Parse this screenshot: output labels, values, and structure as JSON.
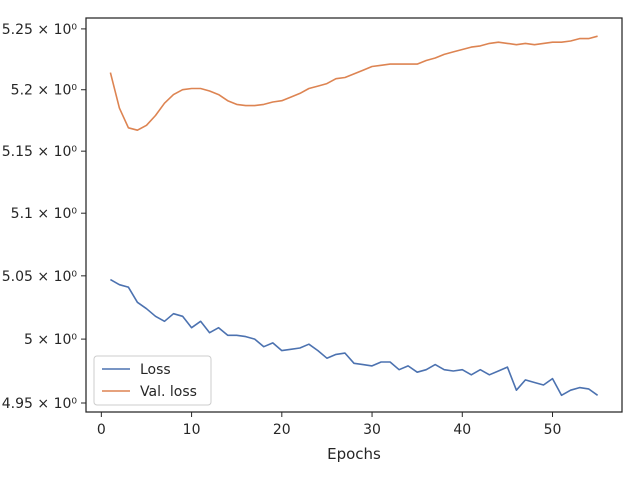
{
  "chart_data": {
    "type": "line",
    "xlabel": "Epochs",
    "ylabel": "",
    "xlim": [
      -1.7,
      57.7
    ],
    "ylim": [
      4.943,
      5.259
    ],
    "xticks": [
      0,
      10,
      20,
      30,
      40,
      50
    ],
    "xtick_labels": [
      "0",
      "10",
      "20",
      "30",
      "40",
      "50"
    ],
    "yticks": [
      4.95,
      5.0,
      5.05,
      5.1,
      5.15,
      5.2,
      5.25
    ],
    "ytick_labels": [
      "4.95 × 10⁰",
      "5 × 10⁰",
      "5.05 × 10⁰",
      "5.1 × 10⁰",
      "5.15 × 10⁰",
      "5.2 × 10⁰",
      "5.25 × 10⁰"
    ],
    "y_scale": "log",
    "grid": false,
    "legend_position": "lower-left",
    "x": [
      1,
      2,
      3,
      4,
      5,
      6,
      7,
      8,
      9,
      10,
      11,
      12,
      13,
      14,
      15,
      16,
      17,
      18,
      19,
      20,
      21,
      22,
      23,
      24,
      25,
      26,
      27,
      28,
      29,
      30,
      31,
      32,
      33,
      34,
      35,
      36,
      37,
      38,
      39,
      40,
      41,
      42,
      43,
      44,
      45,
      46,
      47,
      48,
      49,
      50,
      51,
      52,
      53,
      54,
      55
    ],
    "series": [
      {
        "name": "Loss",
        "color": "#4c72b0",
        "values": [
          5.047,
          5.043,
          5.041,
          5.029,
          5.024,
          5.018,
          5.014,
          5.02,
          5.018,
          5.009,
          5.014,
          5.005,
          5.009,
          5.003,
          5.003,
          5.002,
          5.0,
          4.994,
          4.997,
          4.991,
          4.992,
          4.993,
          4.996,
          4.991,
          4.985,
          4.988,
          4.989,
          4.981,
          4.98,
          4.979,
          4.982,
          4.982,
          4.976,
          4.979,
          4.974,
          4.976,
          4.98,
          4.976,
          4.975,
          4.976,
          4.972,
          4.976,
          4.972,
          4.975,
          4.978,
          4.96,
          4.968,
          4.966,
          4.964,
          4.969,
          4.956,
          4.96,
          4.962,
          4.961,
          4.956
        ]
      },
      {
        "name": "Val. loss",
        "color": "#dd8452",
        "values": [
          5.214,
          5.185,
          5.169,
          5.167,
          5.171,
          5.179,
          5.189,
          5.196,
          5.2,
          5.201,
          5.201,
          5.199,
          5.196,
          5.191,
          5.188,
          5.187,
          5.187,
          5.188,
          5.19,
          5.191,
          5.194,
          5.197,
          5.201,
          5.203,
          5.205,
          5.209,
          5.21,
          5.213,
          5.216,
          5.219,
          5.22,
          5.221,
          5.221,
          5.221,
          5.221,
          5.224,
          5.226,
          5.229,
          5.231,
          5.233,
          5.235,
          5.236,
          5.238,
          5.239,
          5.238,
          5.237,
          5.238,
          5.237,
          5.238,
          5.239,
          5.239,
          5.24,
          5.242,
          5.242,
          5.244
        ]
      }
    ]
  }
}
